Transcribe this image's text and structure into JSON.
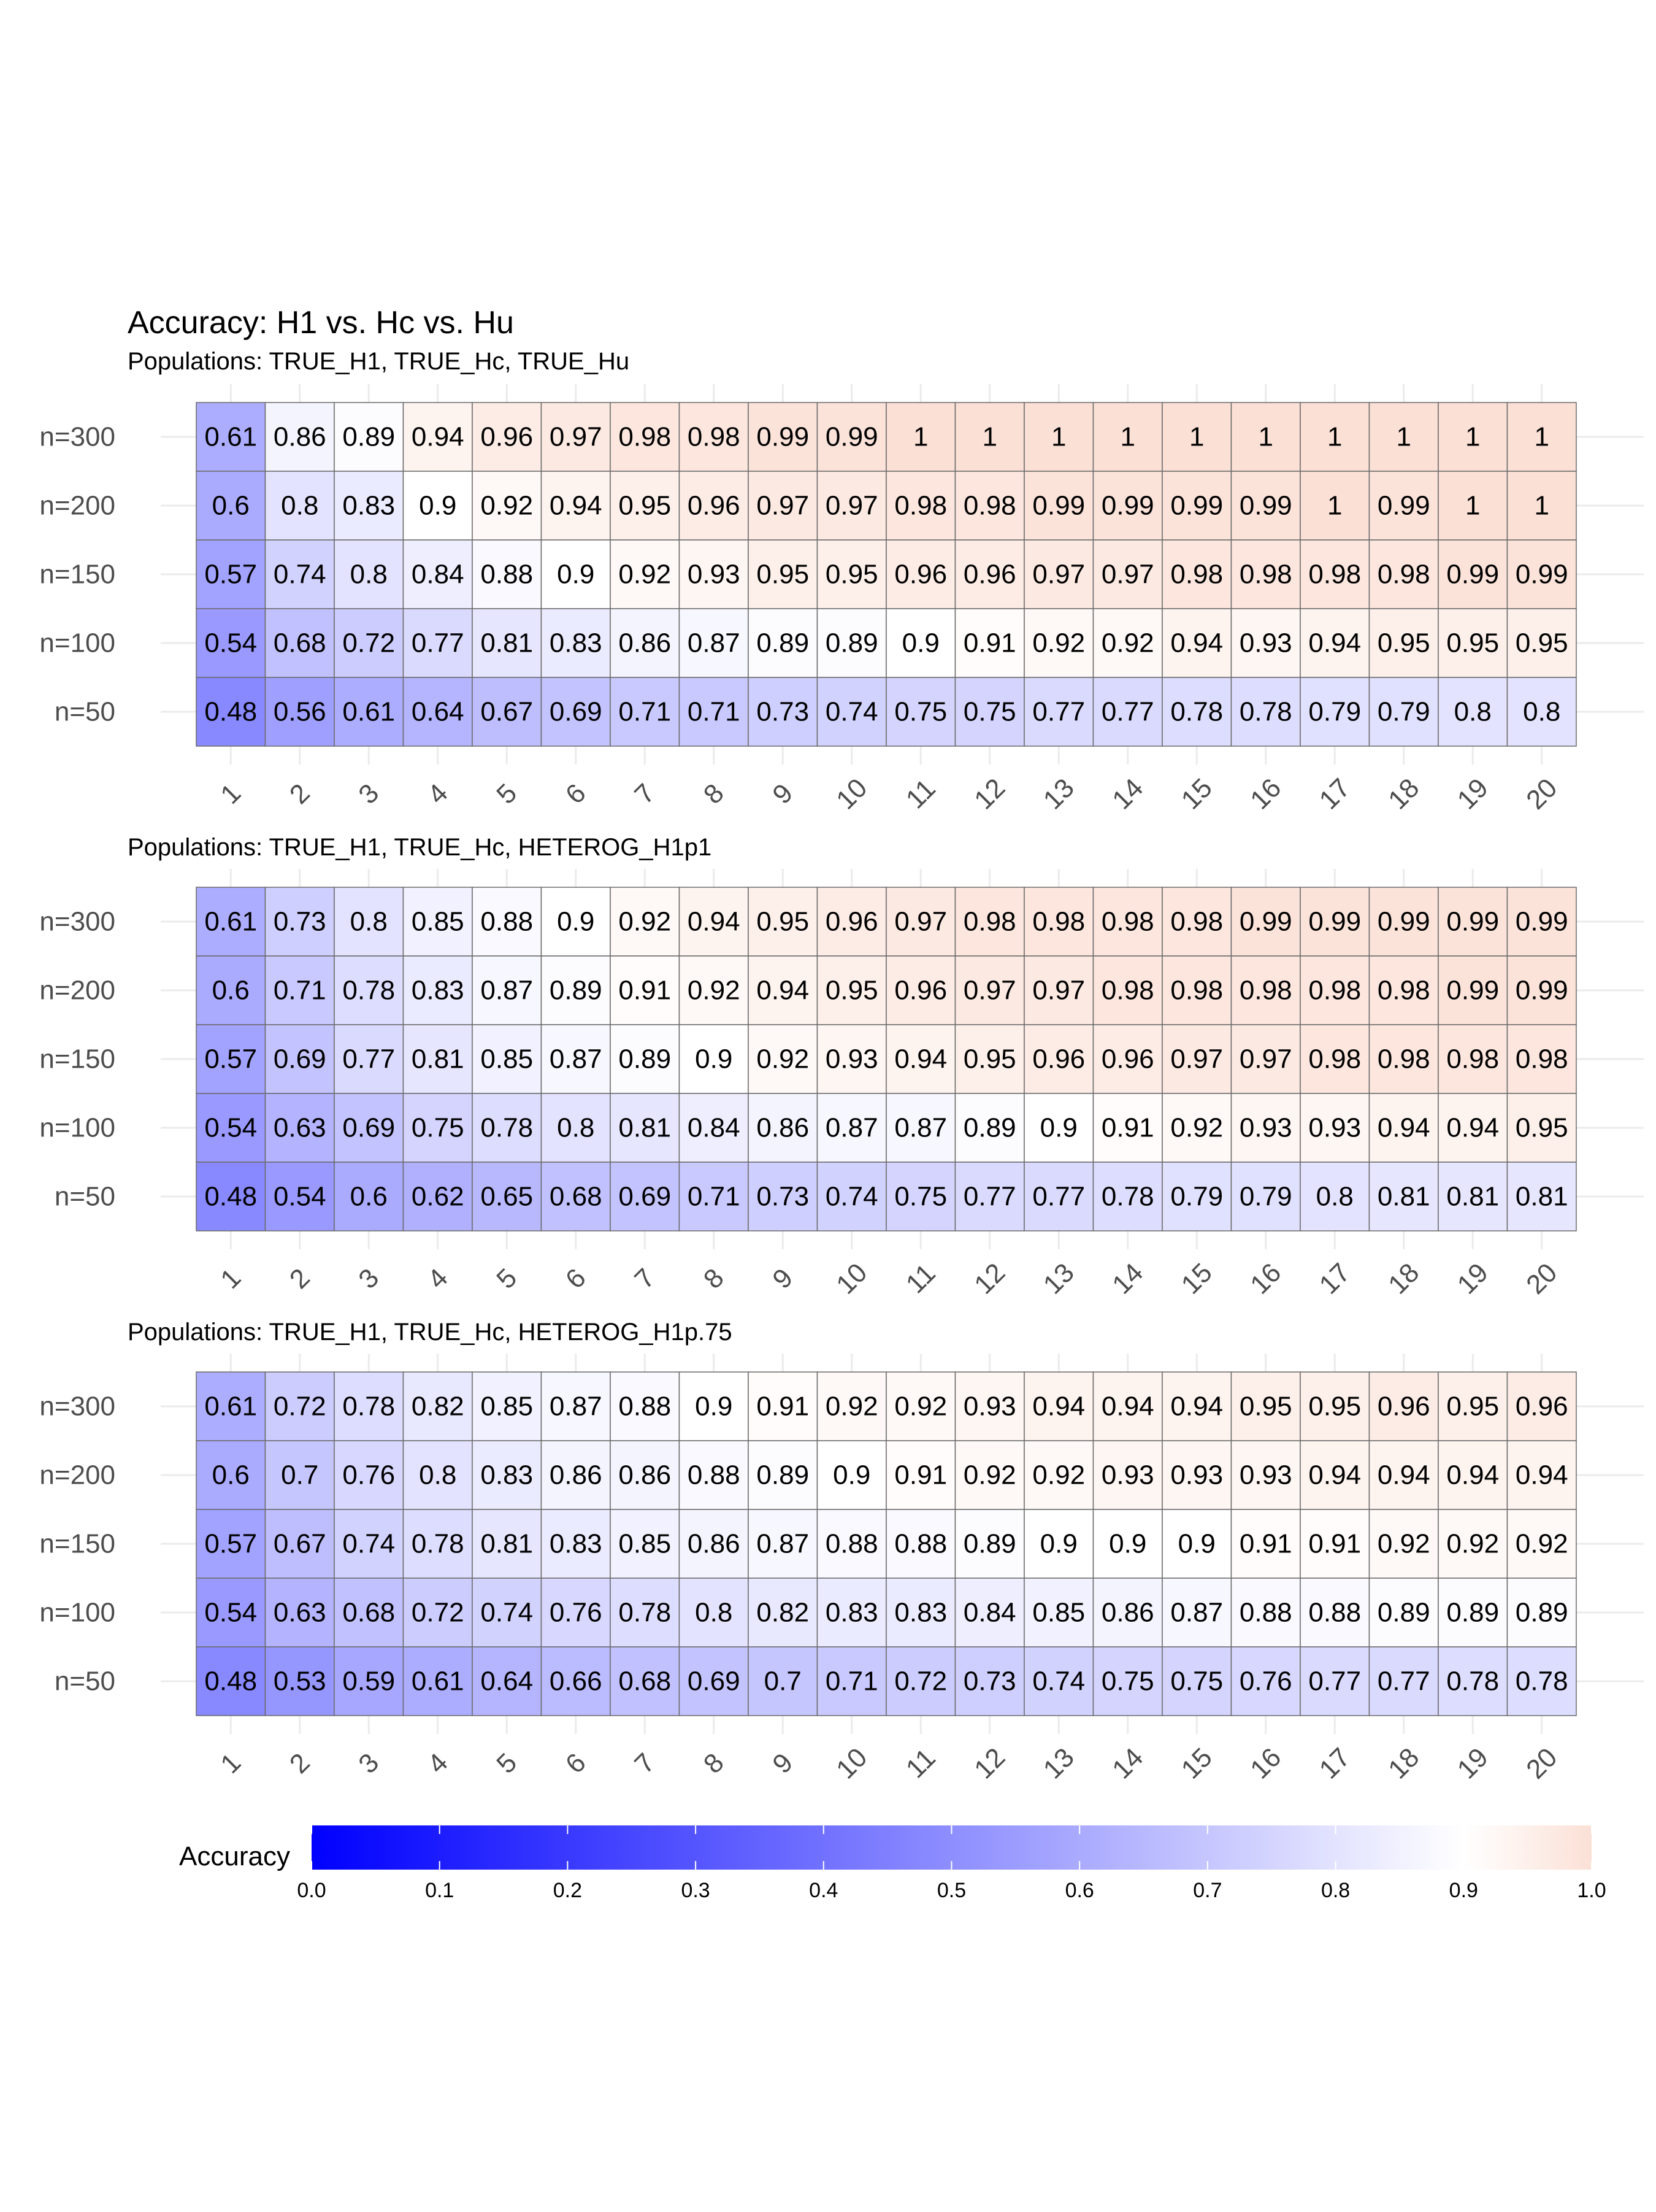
{
  "chart_data": {
    "type": "heatmap",
    "title": "Accuracy: H1 vs. Hc vs. Hu",
    "x_categories": [
      "1",
      "2",
      "3",
      "4",
      "5",
      "6",
      "7",
      "8",
      "9",
      "10",
      "11",
      "12",
      "13",
      "14",
      "15",
      "16",
      "17",
      "18",
      "19",
      "20"
    ],
    "y_categories": [
      "n=300",
      "n=200",
      "n=150",
      "n=100",
      "n=50"
    ],
    "panels": [
      {
        "subtitle": "Populations: TRUE_H1, TRUE_Hc, TRUE_Hu",
        "rows": [
          {
            "label": "n=300",
            "values": [
              0.61,
              0.86,
              0.89,
              0.94,
              0.96,
              0.97,
              0.98,
              0.98,
              0.99,
              0.99,
              1,
              1,
              1,
              1,
              1,
              1,
              1,
              1,
              1,
              1
            ]
          },
          {
            "label": "n=200",
            "values": [
              0.6,
              0.8,
              0.83,
              0.9,
              0.92,
              0.94,
              0.95,
              0.96,
              0.97,
              0.97,
              0.98,
              0.98,
              0.99,
              0.99,
              0.99,
              0.99,
              1,
              0.99,
              1,
              1
            ]
          },
          {
            "label": "n=150",
            "values": [
              0.57,
              0.74,
              0.8,
              0.84,
              0.88,
              0.9,
              0.92,
              0.93,
              0.95,
              0.95,
              0.96,
              0.96,
              0.97,
              0.97,
              0.98,
              0.98,
              0.98,
              0.98,
              0.99,
              0.99
            ]
          },
          {
            "label": "n=100",
            "values": [
              0.54,
              0.68,
              0.72,
              0.77,
              0.81,
              0.83,
              0.86,
              0.87,
              0.89,
              0.89,
              0.9,
              0.91,
              0.92,
              0.92,
              0.94,
              0.93,
              0.94,
              0.95,
              0.95,
              0.95
            ]
          },
          {
            "label": "n=50",
            "values": [
              0.48,
              0.56,
              0.61,
              0.64,
              0.67,
              0.69,
              0.71,
              0.71,
              0.73,
              0.74,
              0.75,
              0.75,
              0.77,
              0.77,
              0.78,
              0.78,
              0.79,
              0.79,
              0.8,
              0.8
            ]
          }
        ]
      },
      {
        "subtitle": "Populations: TRUE_H1, TRUE_Hc, HETEROG_H1p1",
        "rows": [
          {
            "label": "n=300",
            "values": [
              0.61,
              0.73,
              0.8,
              0.85,
              0.88,
              0.9,
              0.92,
              0.94,
              0.95,
              0.96,
              0.97,
              0.98,
              0.98,
              0.98,
              0.98,
              0.99,
              0.99,
              0.99,
              0.99,
              0.99
            ]
          },
          {
            "label": "n=200",
            "values": [
              0.6,
              0.71,
              0.78,
              0.83,
              0.87,
              0.89,
              0.91,
              0.92,
              0.94,
              0.95,
              0.96,
              0.97,
              0.97,
              0.98,
              0.98,
              0.98,
              0.98,
              0.98,
              0.99,
              0.99
            ]
          },
          {
            "label": "n=150",
            "values": [
              0.57,
              0.69,
              0.77,
              0.81,
              0.85,
              0.87,
              0.89,
              0.9,
              0.92,
              0.93,
              0.94,
              0.95,
              0.96,
              0.96,
              0.97,
              0.97,
              0.98,
              0.98,
              0.98,
              0.98
            ]
          },
          {
            "label": "n=100",
            "values": [
              0.54,
              0.63,
              0.69,
              0.75,
              0.78,
              0.8,
              0.81,
              0.84,
              0.86,
              0.87,
              0.87,
              0.89,
              0.9,
              0.91,
              0.92,
              0.93,
              0.93,
              0.94,
              0.94,
              0.95
            ]
          },
          {
            "label": "n=50",
            "values": [
              0.48,
              0.54,
              0.6,
              0.62,
              0.65,
              0.68,
              0.69,
              0.71,
              0.73,
              0.74,
              0.75,
              0.77,
              0.77,
              0.78,
              0.79,
              0.79,
              0.8,
              0.81,
              0.81,
              0.81
            ]
          }
        ]
      },
      {
        "subtitle": "Populations: TRUE_H1, TRUE_Hc, HETEROG_H1p.75",
        "rows": [
          {
            "label": "n=300",
            "values": [
              0.61,
              0.72,
              0.78,
              0.82,
              0.85,
              0.87,
              0.88,
              0.9,
              0.91,
              0.92,
              0.92,
              0.93,
              0.94,
              0.94,
              0.94,
              0.95,
              0.95,
              0.96,
              0.95,
              0.96
            ]
          },
          {
            "label": "n=200",
            "values": [
              0.6,
              0.7,
              0.76,
              0.8,
              0.83,
              0.86,
              0.86,
              0.88,
              0.89,
              0.9,
              0.91,
              0.92,
              0.92,
              0.93,
              0.93,
              0.93,
              0.94,
              0.94,
              0.94,
              0.94
            ]
          },
          {
            "label": "n=150",
            "values": [
              0.57,
              0.67,
              0.74,
              0.78,
              0.81,
              0.83,
              0.85,
              0.86,
              0.87,
              0.88,
              0.88,
              0.89,
              0.9,
              0.9,
              0.9,
              0.91,
              0.91,
              0.92,
              0.92,
              0.92
            ]
          },
          {
            "label": "n=100",
            "values": [
              0.54,
              0.63,
              0.68,
              0.72,
              0.74,
              0.76,
              0.78,
              0.8,
              0.82,
              0.83,
              0.83,
              0.84,
              0.85,
              0.86,
              0.87,
              0.88,
              0.88,
              0.89,
              0.89,
              0.89
            ]
          },
          {
            "label": "n=50",
            "values": [
              0.48,
              0.53,
              0.59,
              0.61,
              0.64,
              0.66,
              0.68,
              0.69,
              0.7,
              0.71,
              0.72,
              0.73,
              0.74,
              0.75,
              0.75,
              0.76,
              0.77,
              0.77,
              0.78,
              0.78
            ]
          }
        ]
      }
    ],
    "legend": {
      "title": "Accuracy",
      "position": "bottom",
      "range": [
        0,
        1
      ],
      "ticks": [
        "0.0",
        "0.1",
        "0.2",
        "0.3",
        "0.4",
        "0.5",
        "0.6",
        "0.7",
        "0.8",
        "0.9",
        "1.0"
      ],
      "color_low": "#0000FF",
      "color_mid": "#FFFFFF",
      "color_high": "#FBE0D6",
      "midpoint": 0.9
    },
    "grid": true
  }
}
